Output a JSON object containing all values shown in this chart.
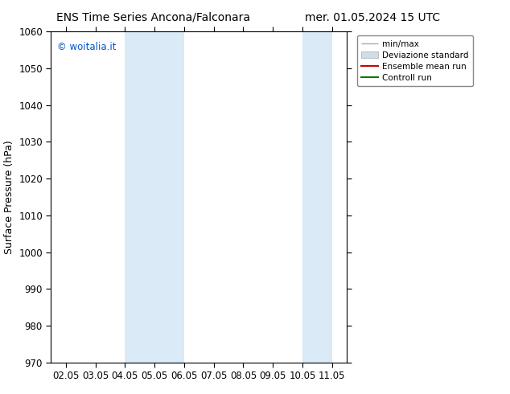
{
  "title_left": "ENS Time Series Ancona/Falconara",
  "title_right": "mer. 01.05.2024 15 UTC",
  "ylabel": "Surface Pressure (hPa)",
  "ylim": [
    970,
    1060
  ],
  "yticks": [
    970,
    980,
    990,
    1000,
    1010,
    1020,
    1030,
    1040,
    1050,
    1060
  ],
  "xtick_labels": [
    "02.05",
    "03.05",
    "04.05",
    "05.05",
    "06.05",
    "07.05",
    "08.05",
    "09.05",
    "10.05",
    "11.05"
  ],
  "xtick_positions": [
    0,
    1,
    2,
    3,
    4,
    5,
    6,
    7,
    8,
    9
  ],
  "watermark": "© woitalia.it",
  "legend_entries": [
    "min/max",
    "Deviazione standard",
    "Ensemble mean run",
    "Controll run"
  ],
  "shaded_bands": [
    {
      "x_start": 2,
      "x_end": 4,
      "color": "#daeaf6"
    },
    {
      "x_start": 8,
      "x_end": 9,
      "color": "#daeaf6"
    }
  ],
  "background_color": "#ffffff",
  "plot_bg_color": "#ffffff",
  "title_fontsize": 10,
  "axis_label_fontsize": 9,
  "tick_fontsize": 8.5,
  "watermark_color": "#0055cc"
}
